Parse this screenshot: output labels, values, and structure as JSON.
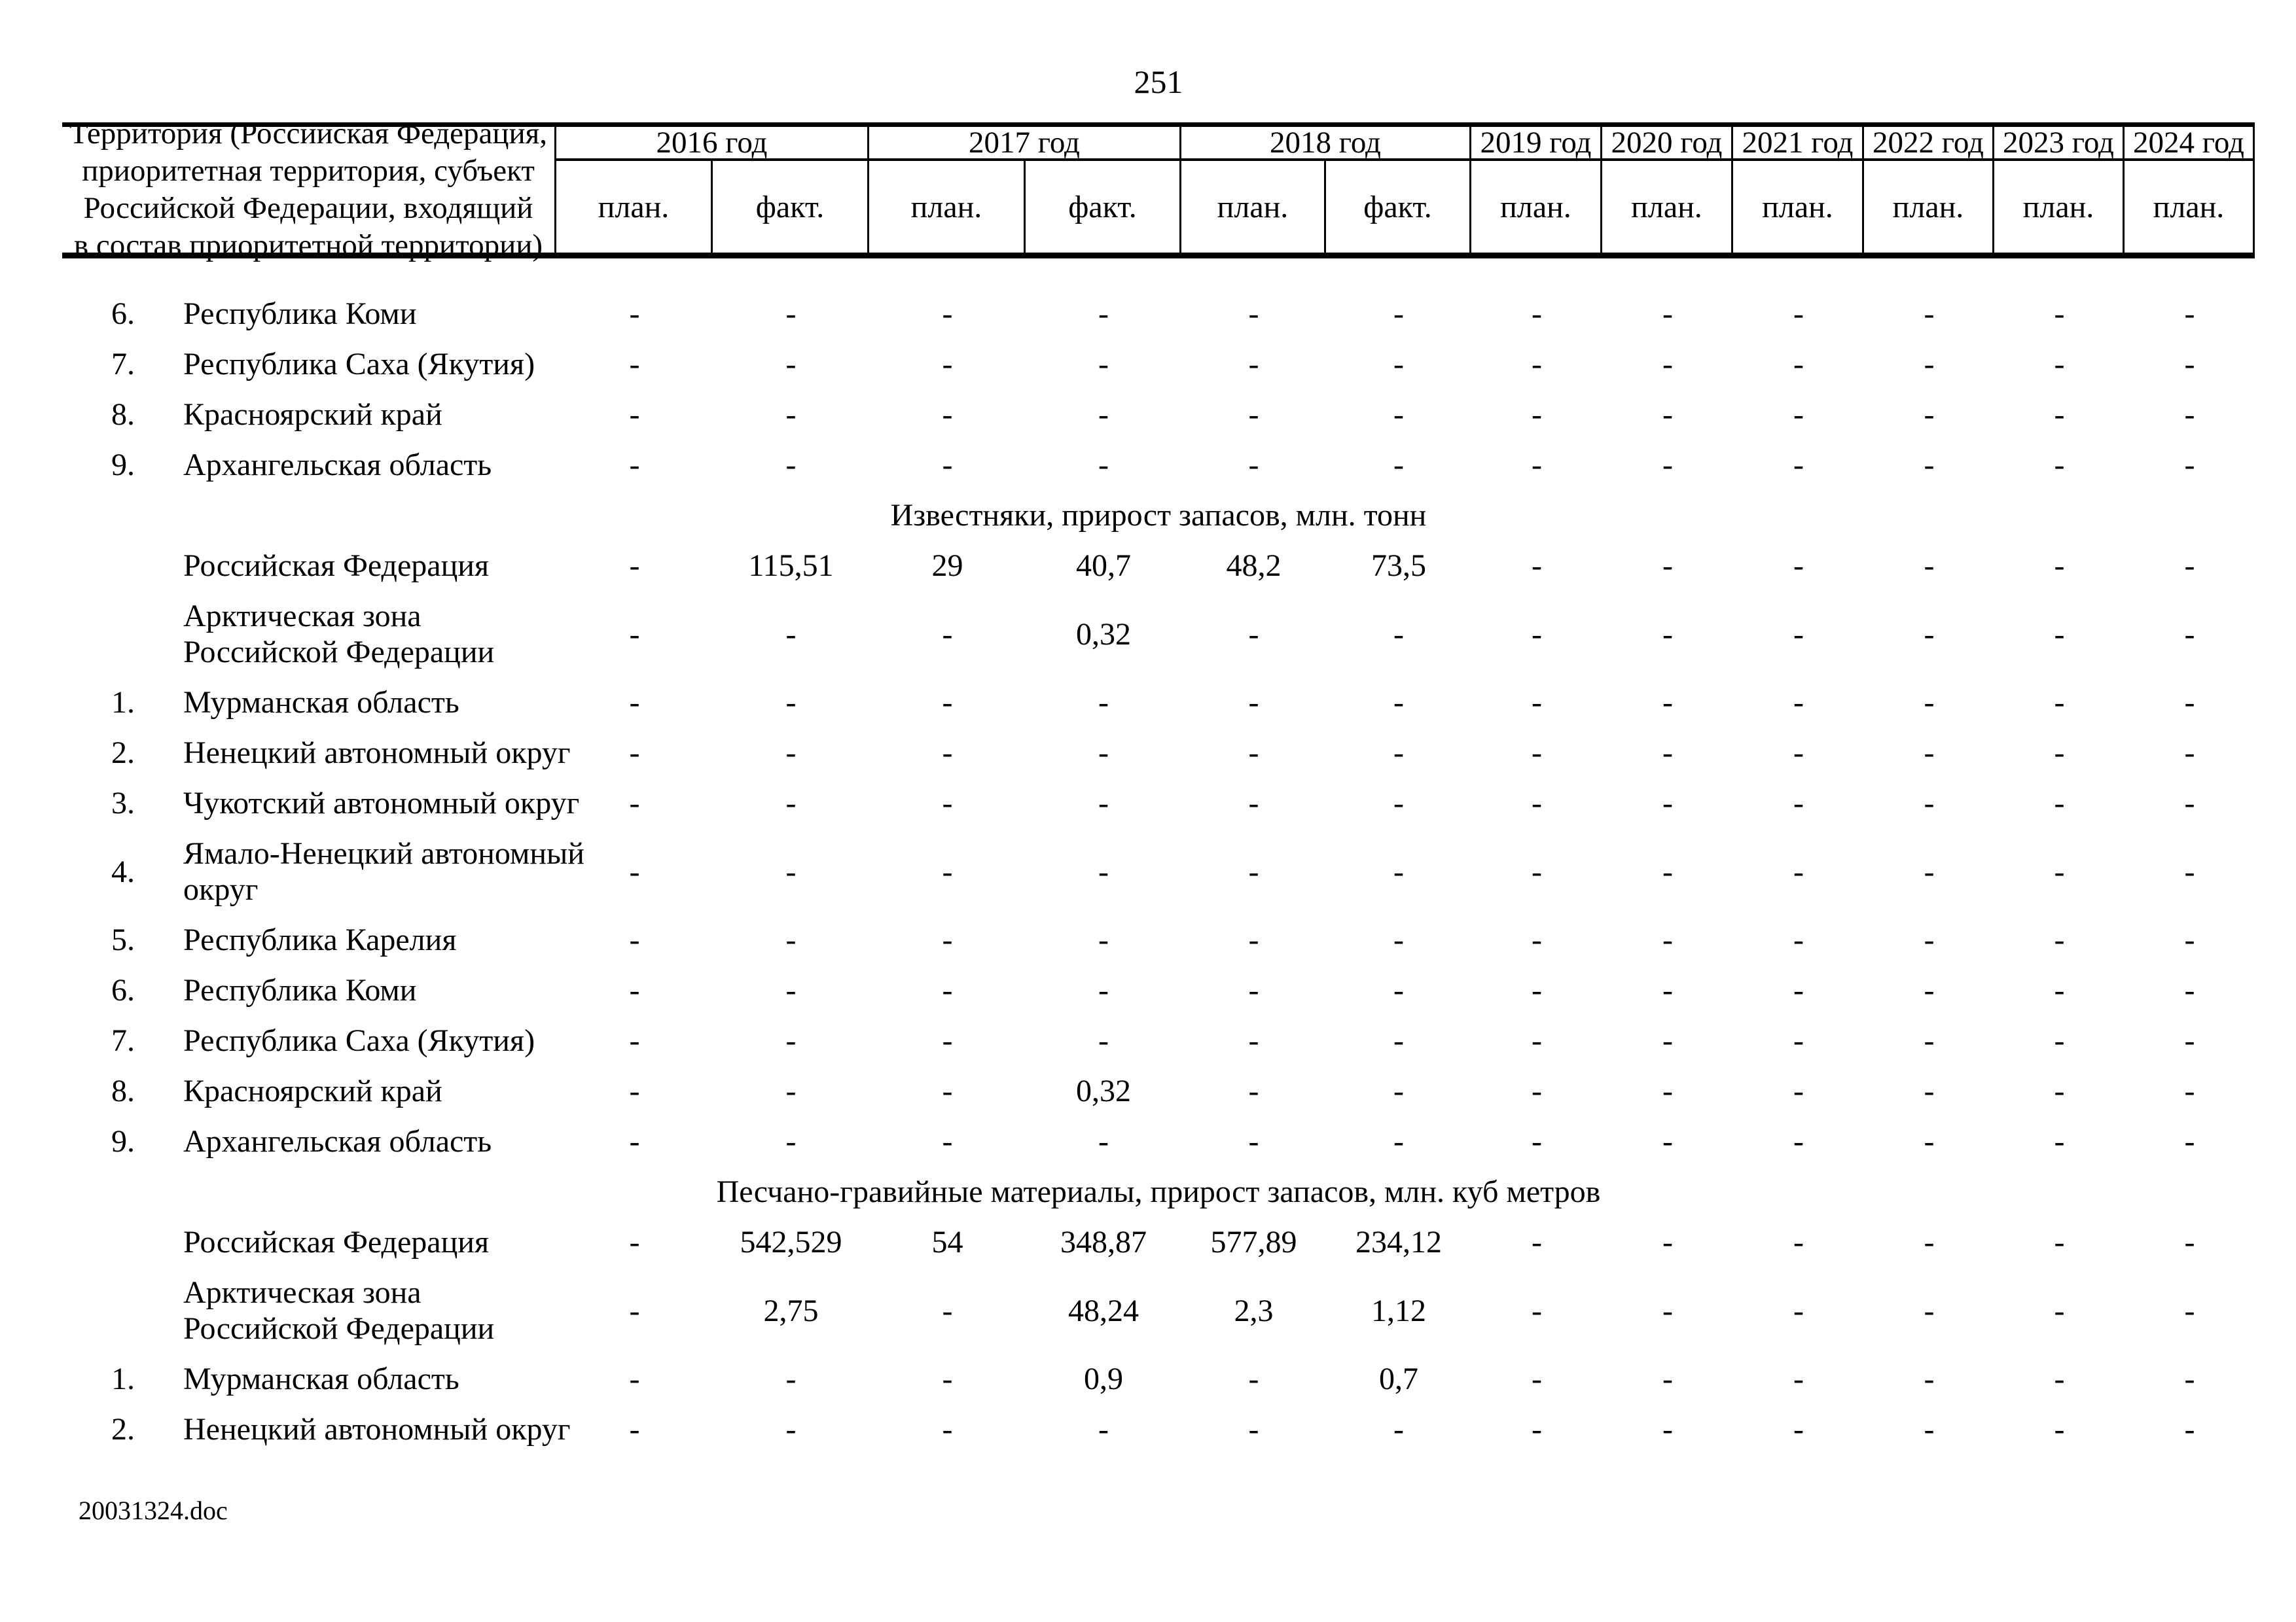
{
  "page": {
    "number": "251",
    "footer": "20031324.doc"
  },
  "table": {
    "territory_header": "Территория (Российская Федерация,\nприоритетная территория, субъект\nРоссийской Федерации, входящий\nв состав приоритетной территории)",
    "year_columns": [
      {
        "label": "2016 год",
        "sub": [
          "план.",
          "факт."
        ]
      },
      {
        "label": "2017 год",
        "sub": [
          "план.",
          "факт."
        ]
      },
      {
        "label": "2018 год",
        "sub": [
          "план.",
          "факт."
        ]
      },
      {
        "label": "2019 год",
        "sub": [
          "план."
        ]
      },
      {
        "label": "2020 год",
        "sub": [
          "план."
        ]
      },
      {
        "label": "2021 год",
        "sub": [
          "план."
        ]
      },
      {
        "label": "2022 год",
        "sub": [
          "план."
        ]
      },
      {
        "label": "2023 год",
        "sub": [
          "план."
        ]
      },
      {
        "label": "2024 год",
        "sub": [
          "план."
        ]
      }
    ],
    "sub_headers": [
      "план.",
      "факт.",
      "план.",
      "факт.",
      "план.",
      "факт.",
      "план.",
      "план.",
      "план.",
      "план.",
      "план.",
      "план."
    ],
    "rows": [
      {
        "num": "6.",
        "name": "Республика Коми",
        "values": [
          "-",
          "-",
          "-",
          "-",
          "-",
          "-",
          "-",
          "-",
          "-",
          "-",
          "-",
          "-"
        ]
      },
      {
        "num": "7.",
        "name": "Республика Саха (Якутия)",
        "values": [
          "-",
          "-",
          "-",
          "-",
          "-",
          "-",
          "-",
          "-",
          "-",
          "-",
          "-",
          "-"
        ]
      },
      {
        "num": "8.",
        "name": "Красноярский край",
        "values": [
          "-",
          "-",
          "-",
          "-",
          "-",
          "-",
          "-",
          "-",
          "-",
          "-",
          "-",
          "-"
        ]
      },
      {
        "num": "9.",
        "name": "Архангельская область",
        "values": [
          "-",
          "-",
          "-",
          "-",
          "-",
          "-",
          "-",
          "-",
          "-",
          "-",
          "-",
          "-"
        ]
      },
      {
        "section": "Известняки, прирост запасов, млн. тонн"
      },
      {
        "num": "",
        "name": "Российская Федерация",
        "values": [
          "-",
          "115,51",
          "29",
          "40,7",
          "48,2",
          "73,5",
          "-",
          "-",
          "-",
          "-",
          "-",
          "-"
        ]
      },
      {
        "num": "",
        "name": "Арктическая зона\nРоссийской Федерации",
        "tall": true,
        "values": [
          "-",
          "-",
          "-",
          "0,32",
          "-",
          "-",
          "-",
          "-",
          "-",
          "-",
          "-",
          "-"
        ]
      },
      {
        "num": "1.",
        "name": "Мурманская область",
        "values": [
          "-",
          "-",
          "-",
          "-",
          "-",
          "-",
          "-",
          "-",
          "-",
          "-",
          "-",
          "-"
        ]
      },
      {
        "num": "2.",
        "name": "Ненецкий автономный округ",
        "values": [
          "-",
          "-",
          "-",
          "-",
          "-",
          "-",
          "-",
          "-",
          "-",
          "-",
          "-",
          "-"
        ]
      },
      {
        "num": "3.",
        "name": "Чукотский автономный округ",
        "values": [
          "-",
          "-",
          "-",
          "-",
          "-",
          "-",
          "-",
          "-",
          "-",
          "-",
          "-",
          "-"
        ]
      },
      {
        "num": "4.",
        "name": "Ямало-Ненецкий автономный\nокруг",
        "tall": true,
        "values": [
          "-",
          "-",
          "-",
          "-",
          "-",
          "-",
          "-",
          "-",
          "-",
          "-",
          "-",
          "-"
        ]
      },
      {
        "num": "5.",
        "name": "Республика Карелия",
        "values": [
          "-",
          "-",
          "-",
          "-",
          "-",
          "-",
          "-",
          "-",
          "-",
          "-",
          "-",
          "-"
        ]
      },
      {
        "num": "6.",
        "name": "Республика Коми",
        "values": [
          "-",
          "-",
          "-",
          "-",
          "-",
          "-",
          "-",
          "-",
          "-",
          "-",
          "-",
          "-"
        ]
      },
      {
        "num": "7.",
        "name": "Республика Саха (Якутия)",
        "values": [
          "-",
          "-",
          "-",
          "-",
          "-",
          "-",
          "-",
          "-",
          "-",
          "-",
          "-",
          "-"
        ]
      },
      {
        "num": "8.",
        "name": "Красноярский край",
        "values": [
          "-",
          "-",
          "-",
          "0,32",
          "-",
          "-",
          "-",
          "-",
          "-",
          "-",
          "-",
          "-"
        ]
      },
      {
        "num": "9.",
        "name": "Архангельская область",
        "values": [
          "-",
          "-",
          "-",
          "-",
          "-",
          "-",
          "-",
          "-",
          "-",
          "-",
          "-",
          "-"
        ]
      },
      {
        "section": "Песчано-гравийные материалы, прирост запасов, млн. куб метров"
      },
      {
        "num": "",
        "name": "Российская Федерация",
        "values": [
          "-",
          "542,529",
          "54",
          "348,87",
          "577,89",
          "234,12",
          "-",
          "-",
          "-",
          "-",
          "-",
          "-"
        ]
      },
      {
        "num": "",
        "name": "Арктическая зона\nРоссийской Федерации",
        "tall": true,
        "values": [
          "-",
          "2,75",
          "-",
          "48,24",
          "2,3",
          "1,12",
          "-",
          "-",
          "-",
          "-",
          "-",
          "-"
        ]
      },
      {
        "num": "1.",
        "name": "Мурманская область",
        "values": [
          "-",
          "-",
          "-",
          "0,9",
          "-",
          "0,7",
          "-",
          "-",
          "-",
          "-",
          "-",
          "-"
        ]
      },
      {
        "num": "2.",
        "name": "Ненецкий автономный округ",
        "values": [
          "-",
          "-",
          "-",
          "-",
          "-",
          "-",
          "-",
          "-",
          "-",
          "-",
          "-",
          "-"
        ]
      }
    ]
  }
}
